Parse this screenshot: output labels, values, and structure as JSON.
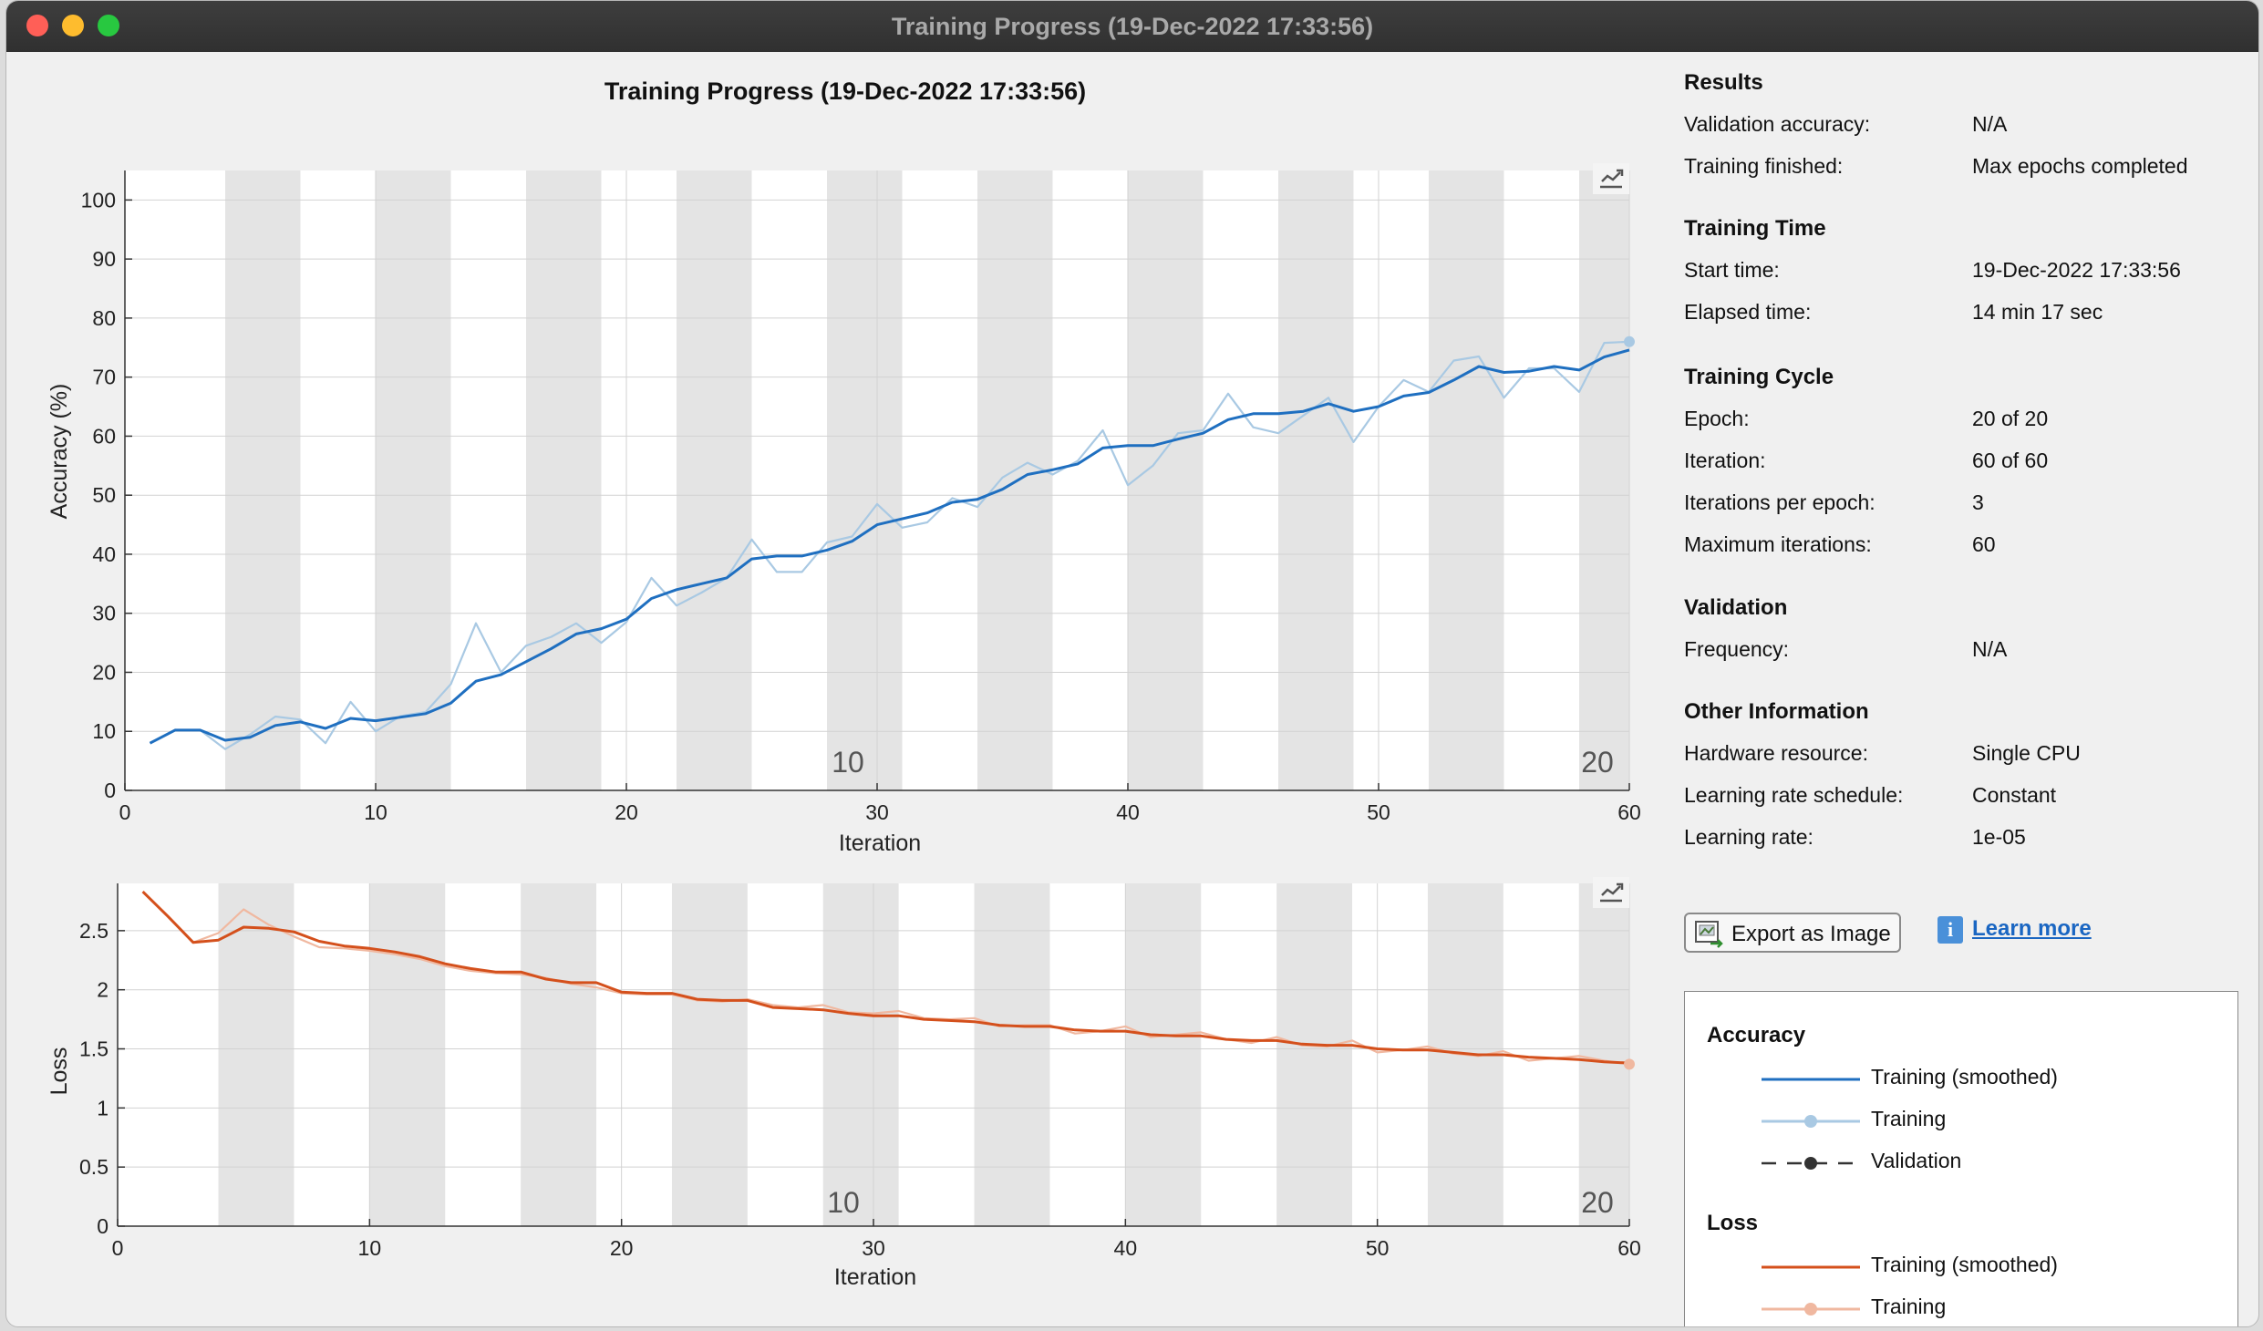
{
  "window": {
    "title": "Training Progress (19-Dec-2022 17:33:56)"
  },
  "accuracy_chart": {
    "title": "Training Progress (19-Dec-2022 17:33:56)",
    "ylabel": "Accuracy (%)",
    "xlabel": "Iteration"
  },
  "loss_chart": {
    "ylabel": "Loss",
    "xlabel": "Iteration"
  },
  "epoch_markers": [
    "10",
    "20"
  ],
  "results": {
    "heading": "Results",
    "rows": [
      {
        "label": "Validation accuracy:",
        "value": "N/A"
      },
      {
        "label": "Training finished:",
        "value": "Max epochs completed"
      }
    ]
  },
  "training_time": {
    "heading": "Training Time",
    "rows": [
      {
        "label": "Start time:",
        "value": "19-Dec-2022 17:33:56"
      },
      {
        "label": "Elapsed time:",
        "value": "14 min 17 sec"
      }
    ]
  },
  "training_cycle": {
    "heading": "Training Cycle",
    "rows": [
      {
        "label": "Epoch:",
        "value": "20 of 20"
      },
      {
        "label": "Iteration:",
        "value": "60 of 60"
      },
      {
        "label": "Iterations per epoch:",
        "value": "3"
      },
      {
        "label": "Maximum iterations:",
        "value": "60"
      }
    ]
  },
  "validation": {
    "heading": "Validation",
    "rows": [
      {
        "label": "Frequency:",
        "value": "N/A"
      }
    ]
  },
  "other_info": {
    "heading": "Other Information",
    "rows": [
      {
        "label": "Hardware resource:",
        "value": "Single CPU"
      },
      {
        "label": "Learning rate schedule:",
        "value": "Constant"
      },
      {
        "label": "Learning rate:",
        "value": "1e-05"
      }
    ]
  },
  "buttons": {
    "export": "Export as Image",
    "learn_more": "Learn more"
  },
  "legend": {
    "accuracy_heading": "Accuracy",
    "accuracy_items": [
      "Training (smoothed)",
      "Training",
      "Validation"
    ],
    "loss_heading": "Loss",
    "loss_items": [
      "Training (smoothed)",
      "Training"
    ]
  },
  "colors": {
    "accuracy_smoothed": "#1f6fc0",
    "accuracy_training": "#a9c9e3",
    "validation": "#333333",
    "loss_smoothed": "#d4501c",
    "loss_training": "#f0b8a0",
    "epoch_band": "#e4e4e4"
  },
  "icons": {
    "axes_toolbar": "export-axes-icon",
    "export": "image-export-icon",
    "info": "info-icon"
  },
  "chart_data": [
    {
      "type": "line",
      "xlabel": "Iteration",
      "ylabel": "Accuracy (%)",
      "xlim": [
        0,
        60
      ],
      "ylim": [
        0,
        105
      ],
      "xticks": [
        0,
        10,
        20,
        30,
        40,
        50,
        60
      ],
      "yticks": [
        0,
        10,
        20,
        30,
        40,
        50,
        60,
        70,
        80,
        90,
        100
      ],
      "grid": true,
      "series": [
        {
          "name": "Training (smoothed)",
          "x": [
            1,
            2,
            3,
            4,
            5,
            6,
            7,
            8,
            9,
            10,
            11,
            12,
            13,
            14,
            15,
            16,
            17,
            18,
            19,
            20,
            21,
            22,
            23,
            24,
            25,
            26,
            27,
            28,
            29,
            30,
            31,
            32,
            33,
            34,
            35,
            36,
            37,
            38,
            39,
            40,
            41,
            42,
            43,
            44,
            45,
            46,
            47,
            48,
            49,
            50,
            51,
            52,
            53,
            54,
            55,
            56,
            57,
            58,
            59,
            60
          ],
          "values": [
            8,
            10.2,
            10.2,
            8.5,
            9,
            11,
            11.6,
            10.5,
            12.2,
            11.8,
            12.4,
            13,
            14.8,
            18.5,
            19.6,
            21.8,
            24,
            26.5,
            27.4,
            29,
            32.5,
            34,
            35,
            36,
            39.2,
            39.7,
            39.7,
            40.7,
            42.2,
            45,
            46,
            47,
            48.8,
            49.3,
            51,
            53.5,
            54.3,
            55.3,
            58,
            58.4,
            58.4,
            59.5,
            60.5,
            62.8,
            63.8,
            63.8,
            64.2,
            65.5,
            64.2,
            65,
            66.8,
            67.4,
            69.5,
            71.8,
            70.8,
            71,
            71.8,
            71.2,
            73.4,
            74.6
          ]
        },
        {
          "name": "Training",
          "x": [
            1,
            2,
            3,
            4,
            5,
            6,
            7,
            8,
            9,
            10,
            11,
            12,
            13,
            14,
            15,
            16,
            17,
            18,
            19,
            20,
            21,
            22,
            23,
            24,
            25,
            26,
            27,
            28,
            29,
            30,
            31,
            32,
            33,
            34,
            35,
            36,
            37,
            38,
            39,
            40,
            41,
            42,
            43,
            44,
            45,
            46,
            47,
            48,
            49,
            50,
            51,
            52,
            53,
            54,
            55,
            56,
            57,
            58,
            59,
            60
          ],
          "values": [
            8,
            10.2,
            10.2,
            7,
            9.5,
            12.5,
            12,
            8,
            15,
            10,
            12.6,
            13.3,
            18,
            28.3,
            20,
            24.5,
            26,
            28.3,
            25,
            28.5,
            36,
            31.3,
            33.5,
            36,
            42.5,
            37,
            37,
            42,
            43,
            48.5,
            44.5,
            45.4,
            49.5,
            48,
            53,
            55.5,
            53.5,
            55.8,
            61,
            51.7,
            55,
            60.5,
            61,
            67.2,
            61.5,
            60.5,
            63.5,
            66.5,
            59,
            65,
            69.5,
            67.5,
            72.8,
            73.5,
            66.5,
            71.5,
            71.5,
            67.5,
            75.8,
            76
          ]
        }
      ]
    },
    {
      "type": "line",
      "xlabel": "Iteration",
      "ylabel": "Loss",
      "xlim": [
        0,
        60
      ],
      "ylim": [
        0,
        2.9
      ],
      "xticks": [
        0,
        10,
        20,
        30,
        40,
        50,
        60
      ],
      "yticks": [
        0,
        0.5,
        1,
        1.5,
        2,
        2.5
      ],
      "grid": true,
      "series": [
        {
          "name": "Training (smoothed)",
          "x": [
            1,
            2,
            3,
            4,
            5,
            6,
            7,
            8,
            9,
            10,
            11,
            12,
            13,
            14,
            15,
            16,
            17,
            18,
            19,
            20,
            21,
            22,
            23,
            24,
            25,
            26,
            27,
            28,
            29,
            30,
            31,
            32,
            33,
            34,
            35,
            36,
            37,
            38,
            39,
            40,
            41,
            42,
            43,
            44,
            45,
            46,
            47,
            48,
            49,
            50,
            51,
            52,
            53,
            54,
            55,
            56,
            57,
            58,
            59,
            60
          ],
          "values": [
            2.83,
            2.62,
            2.4,
            2.42,
            2.53,
            2.52,
            2.49,
            2.41,
            2.37,
            2.35,
            2.32,
            2.28,
            2.22,
            2.18,
            2.15,
            2.15,
            2.09,
            2.06,
            2.06,
            1.98,
            1.97,
            1.97,
            1.92,
            1.91,
            1.91,
            1.85,
            1.84,
            1.83,
            1.8,
            1.78,
            1.78,
            1.75,
            1.74,
            1.73,
            1.7,
            1.69,
            1.69,
            1.66,
            1.65,
            1.65,
            1.62,
            1.61,
            1.61,
            1.58,
            1.57,
            1.57,
            1.54,
            1.53,
            1.53,
            1.5,
            1.49,
            1.49,
            1.47,
            1.45,
            1.45,
            1.43,
            1.42,
            1.41,
            1.39,
            1.38
          ]
        },
        {
          "name": "Training",
          "x": [
            1,
            2,
            3,
            4,
            5,
            6,
            7,
            8,
            9,
            10,
            11,
            12,
            13,
            14,
            15,
            16,
            17,
            18,
            19,
            20,
            21,
            22,
            23,
            24,
            25,
            26,
            27,
            28,
            29,
            30,
            31,
            32,
            33,
            34,
            35,
            36,
            37,
            38,
            39,
            40,
            41,
            42,
            43,
            44,
            45,
            46,
            47,
            48,
            49,
            50,
            51,
            52,
            53,
            54,
            55,
            56,
            57,
            58,
            59,
            60
          ],
          "values": [
            2.83,
            2.62,
            2.4,
            2.48,
            2.68,
            2.55,
            2.45,
            2.36,
            2.35,
            2.33,
            2.3,
            2.26,
            2.2,
            2.16,
            2.14,
            2.13,
            2.1,
            2.05,
            2.02,
            1.97,
            1.96,
            1.96,
            1.91,
            1.9,
            1.92,
            1.87,
            1.85,
            1.87,
            1.81,
            1.8,
            1.82,
            1.76,
            1.75,
            1.76,
            1.69,
            1.7,
            1.7,
            1.63,
            1.65,
            1.69,
            1.6,
            1.62,
            1.64,
            1.58,
            1.55,
            1.6,
            1.53,
            1.52,
            1.57,
            1.47,
            1.49,
            1.52,
            1.46,
            1.44,
            1.48,
            1.4,
            1.42,
            1.44,
            1.4,
            1.37
          ]
        }
      ]
    }
  ]
}
